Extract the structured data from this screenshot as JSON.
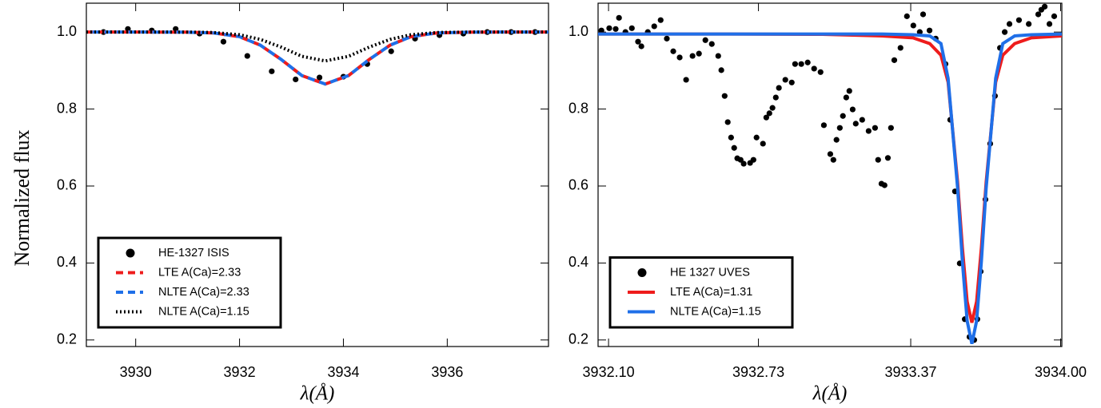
{
  "chart_data": [
    {
      "type": "line",
      "ylabel": "Normalized flux",
      "xlabel": "λ(Å)",
      "xlim": [
        3929.05,
        3937.95
      ],
      "ylim": [
        0.183,
        1.075
      ],
      "xticks": [
        3930,
        3932,
        3934,
        3936
      ],
      "yticks": [
        {
          "value": 1,
          "label": "1.0"
        },
        0.8,
        0.6,
        0.4,
        0.2
      ],
      "legend": "lower left",
      "series": [
        {
          "name": "HE-1327 ISIS",
          "color": "#000000",
          "style": "points",
          "x": [
            3929.38,
            3929.85,
            3930.31,
            3930.77,
            3931.23,
            3931.69,
            3932.15,
            3932.62,
            3933.08,
            3933.54,
            3934.0,
            3934.46,
            3934.92,
            3935.38,
            3935.85,
            3936.31,
            3936.77,
            3937.23,
            3937.69
          ],
          "values": [
            1.0,
            1.008,
            1.004,
            1.008,
            0.996,
            0.975,
            0.938,
            0.898,
            0.877,
            0.882,
            0.884,
            0.917,
            0.95,
            0.983,
            0.992,
            0.996,
            1.0,
            1.0,
            1.0
          ]
        },
        {
          "name": "LTE A(Ca)=2.33",
          "color": "#ee1c1c",
          "style": "dashed",
          "x": [
            3929.05,
            3930,
            3931,
            3931.5,
            3932,
            3932.4,
            3932.8,
            3933.2,
            3933.65,
            3934.1,
            3934.5,
            3934.9,
            3935.3,
            3935.8,
            3936.5,
            3937.95
          ],
          "values": [
            1.0,
            1.0,
            0.9997,
            0.9978,
            0.988,
            0.966,
            0.929,
            0.887,
            0.865,
            0.887,
            0.929,
            0.966,
            0.988,
            0.9978,
            0.9999,
            1.0
          ]
        },
        {
          "name": "NLTE A(Ca)=2.33",
          "color": "#1f6fe8",
          "style": "dashed-offset",
          "x": [
            3929.05,
            3930,
            3931,
            3931.5,
            3932,
            3932.4,
            3932.8,
            3933.2,
            3933.65,
            3934.1,
            3934.5,
            3934.9,
            3935.3,
            3935.8,
            3936.5,
            3937.95
          ],
          "values": [
            1.0,
            1.0,
            0.9997,
            0.9978,
            0.988,
            0.966,
            0.929,
            0.887,
            0.865,
            0.887,
            0.929,
            0.966,
            0.988,
            0.9978,
            0.9999,
            1.0
          ]
        },
        {
          "name": "NLTE A(Ca)=1.15",
          "color": "#000000",
          "style": "dotted",
          "x": [
            3929.05,
            3930,
            3931,
            3931.5,
            3932,
            3932.4,
            3932.8,
            3933.2,
            3933.65,
            3934.1,
            3934.5,
            3934.9,
            3935.3,
            3935.8,
            3936.5,
            3937.95
          ],
          "values": [
            1.0,
            1.0,
            0.9999,
            0.9988,
            0.993,
            0.981,
            0.961,
            0.937,
            0.925,
            0.937,
            0.961,
            0.981,
            0.993,
            0.9988,
            1.0,
            1.0
          ]
        }
      ]
    },
    {
      "type": "line",
      "xlabel": "λ(Å)",
      "xlim": [
        3932.056,
        3934.005
      ],
      "ylim": [
        0.183,
        1.075
      ],
      "xticks": [
        {
          "value": 3932.1,
          "label": "3932.10"
        },
        3932.73,
        3933.37,
        {
          "value": 3934,
          "label": "3934.00"
        }
      ],
      "yticks": [
        {
          "value": 1,
          "label": "1.0"
        },
        0.8,
        0.6,
        0.4,
        0.2
      ],
      "legend": "lower left",
      "series": [
        {
          "name": "HE 1327 UVES",
          "color": "#000000",
          "style": "points",
          "x": [
            3932.07,
            3932.103,
            3932.13,
            3932.144,
            3932.171,
            3932.198,
            3932.224,
            3932.238,
            3932.265,
            3932.292,
            3932.319,
            3932.345,
            3932.372,
            3932.399,
            3932.426,
            3932.453,
            3932.48,
            3932.507,
            3932.534,
            3932.561,
            3932.574,
            3932.588,
            3932.601,
            3932.615,
            3932.628,
            3932.641,
            3932.655,
            3932.668,
            3932.695,
            3932.709,
            3932.722,
            3932.749,
            3932.763,
            3932.776,
            3932.789,
            3932.803,
            3932.816,
            3932.843,
            3932.87,
            3932.884,
            3932.91,
            3932.937,
            3932.964,
            3932.991,
            3933.005,
            3933.032,
            3933.045,
            3933.058,
            3933.072,
            3933.085,
            3933.099,
            3933.112,
            3933.126,
            3933.139,
            3933.166,
            3933.193,
            3933.22,
            3933.233,
            3933.247,
            3933.26,
            3933.274,
            3933.287,
            3933.301,
            3933.327,
            3933.354,
            3933.381,
            3933.408,
            3933.422,
            3933.449,
            3933.475,
            3933.516,
            3933.536,
            3933.556,
            3933.576,
            3933.597,
            3933.617,
            3933.637,
            3933.65,
            3933.664,
            3933.684,
            3933.704,
            3933.724,
            3933.745,
            3933.765,
            3933.785,
            3933.825,
            3933.866,
            3933.906,
            3933.919,
            3933.933,
            3933.953,
            3933.973
          ],
          "values": [
            1.004,
            1.01,
            1.008,
            1.037,
            1.0,
            1.01,
            0.975,
            0.963,
            1.0,
            1.015,
            1.031,
            0.983,
            0.95,
            0.934,
            0.876,
            0.938,
            0.944,
            0.979,
            0.969,
            0.938,
            0.901,
            0.834,
            0.766,
            0.726,
            0.699,
            0.672,
            0.668,
            0.658,
            0.66,
            0.668,
            0.726,
            0.71,
            0.778,
            0.789,
            0.803,
            0.83,
            0.855,
            0.876,
            0.869,
            0.917,
            0.917,
            0.921,
            0.905,
            0.896,
            0.758,
            0.683,
            0.668,
            0.72,
            0.751,
            0.782,
            0.83,
            0.847,
            0.799,
            0.762,
            0.772,
            0.743,
            0.751,
            0.668,
            0.606,
            0.602,
            0.673,
            0.751,
            0.927,
            0.959,
            1.041,
            1.017,
            1.0,
            1.046,
            1.004,
            0.983,
            0.917,
            0.772,
            0.586,
            0.399,
            0.254,
            0.208,
            0.2,
            0.254,
            0.378,
            0.565,
            0.71,
            0.834,
            0.959,
            1.0,
            1.021,
            1.031,
            1.021,
            1.046,
            1.058,
            1.066,
            1.021,
            1.041
          ]
        },
        {
          "name": "LTE A(Ca)=1.31",
          "color": "#ee1c1c",
          "style": "solid",
          "x": [
            3932.056,
            3932.6,
            3933.0,
            3933.25,
            3933.38,
            3933.45,
            3933.497,
            3933.527,
            3933.567,
            3933.587,
            3933.607,
            3933.627,
            3933.647,
            3933.667,
            3933.687,
            3933.727,
            3933.757,
            3933.807,
            3933.877,
            3934.005
          ],
          "values": [
            0.995,
            0.995,
            0.994,
            0.99,
            0.985,
            0.97,
            0.94,
            0.87,
            0.61,
            0.44,
            0.3,
            0.245,
            0.3,
            0.44,
            0.61,
            0.87,
            0.94,
            0.97,
            0.985,
            0.99
          ]
        },
        {
          "name": "NLTE A(Ca)=1.15",
          "color": "#1f6fe8",
          "style": "solid",
          "x": [
            3932.056,
            3932.6,
            3933.0,
            3933.25,
            3933.38,
            3933.45,
            3933.497,
            3933.527,
            3933.567,
            3933.587,
            3933.607,
            3933.627,
            3933.647,
            3933.667,
            3933.687,
            3933.727,
            3933.757,
            3933.807,
            3933.877,
            3934.005
          ],
          "values": [
            0.995,
            0.995,
            0.995,
            0.995,
            0.993,
            0.99,
            0.97,
            0.88,
            0.595,
            0.405,
            0.25,
            0.19,
            0.25,
            0.405,
            0.595,
            0.88,
            0.97,
            0.99,
            0.993,
            0.995
          ]
        }
      ]
    }
  ]
}
